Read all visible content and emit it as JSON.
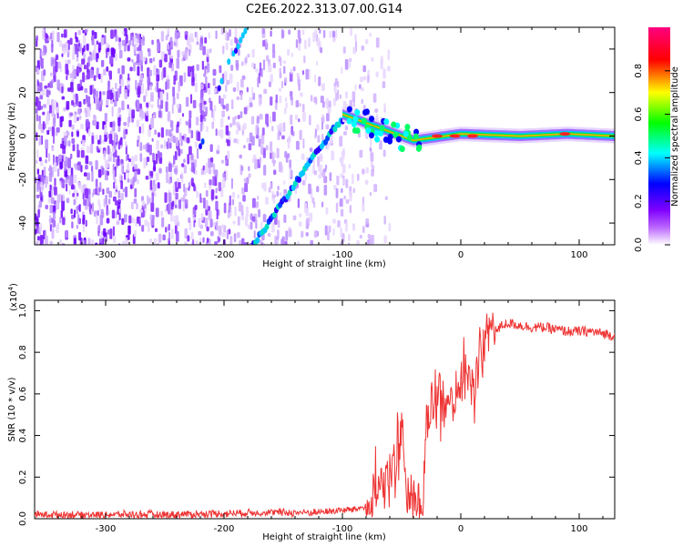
{
  "title": "C2E6.2022.313.07.00.G14",
  "chart_data": [
    {
      "type": "heatmap",
      "title": "",
      "xlabel": "Height of straight line (km)",
      "ylabel": "Frequency (Hz)",
      "xlim": [
        -360,
        130
      ],
      "ylim": [
        -50,
        50
      ],
      "xticks": [
        -300,
        -200,
        -100,
        0,
        100
      ],
      "yticks": [
        -40,
        -20,
        0,
        20,
        40
      ],
      "colorbar": {
        "label": "Normalized spectral amplitude",
        "range": [
          0,
          1
        ],
        "ticks": [
          "0.0",
          "0.2",
          "0.4",
          "0.6",
          "0.8"
        ],
        "colormap": [
          "#ffffff",
          "#7f00ff",
          "#0000ff",
          "#00ffff",
          "#00ff00",
          "#ffff00",
          "#ff0000",
          "#ff0080"
        ]
      },
      "features": [
        {
          "name": "dispersive-trace-lower",
          "x": [
            -175,
            -150,
            -125,
            -105,
            -95
          ],
          "y": [
            -50,
            -30,
            -10,
            5,
            10
          ]
        },
        {
          "name": "dispersive-trace-upper",
          "x": [
            -220,
            -205,
            -195,
            -180
          ],
          "y": [
            -5,
            20,
            35,
            50
          ]
        },
        {
          "name": "carrier-line",
          "x": [
            -100,
            -60,
            -40,
            0,
            50,
            90,
            130
          ],
          "y": [
            10,
            2,
            -2,
            1,
            0,
            1,
            0
          ]
        }
      ]
    },
    {
      "type": "line",
      "title": "",
      "xlabel": "Height of straight line (km)",
      "ylabel": "SNR (10 * v/v)",
      "scale_label": "(x10",
      "scale_exp": "4",
      "scale_close": ")",
      "xlim": [
        -360,
        130
      ],
      "ylim": [
        0,
        1.05
      ],
      "xticks": [
        -300,
        -200,
        -100,
        0,
        100
      ],
      "yticks": [
        "0.0",
        "0.2",
        "0.4",
        "0.6",
        "0.8",
        "1.0"
      ],
      "color": "#ee3333",
      "series": [
        {
          "x": [
            -360,
            -300,
            -250,
            -200,
            -175,
            -150,
            -125,
            -100,
            -85,
            -75,
            -70,
            -60,
            -55,
            -50,
            -45,
            -40,
            -38,
            -35,
            -32,
            -30,
            -25,
            -20,
            -15,
            -10,
            -5,
            0,
            5,
            10,
            15,
            20,
            25,
            30,
            35,
            40,
            50,
            60,
            70,
            80,
            90,
            100,
            110,
            120,
            130
          ],
          "y": [
            0.02,
            0.02,
            0.02,
            0.025,
            0.03,
            0.03,
            0.03,
            0.04,
            0.05,
            0.08,
            0.15,
            0.2,
            0.3,
            0.45,
            0.1,
            0.05,
            0.08,
            0.02,
            0.03,
            0.4,
            0.55,
            0.6,
            0.5,
            0.55,
            0.6,
            0.65,
            0.7,
            0.6,
            0.75,
            0.85,
            0.88,
            0.9,
            0.93,
            0.94,
            0.93,
            0.92,
            0.92,
            0.91,
            0.9,
            0.9,
            0.9,
            0.89,
            0.88
          ]
        }
      ]
    }
  ]
}
